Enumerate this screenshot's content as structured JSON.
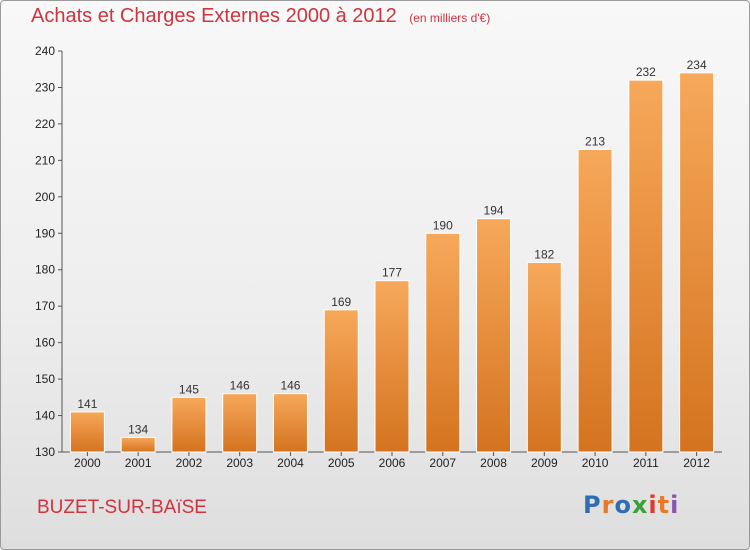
{
  "title": "Achats et Charges Externes 2000 à 2012",
  "subtitle": "(en milliers d'€)",
  "location": "BUZET-SUR-BAïSE",
  "logo_text": "Proxiti",
  "colors": {
    "title": "#d0343f",
    "bar_light": "#f7a85a",
    "bar_dark": "#d4731f",
    "logo": [
      "#2f6db5",
      "#e8792a",
      "#2f6db5",
      "#3aa13a",
      "#e0392f",
      "#e8792a",
      "#8a55b0"
    ]
  },
  "chart_data": {
    "type": "bar",
    "title": "Achats et Charges Externes 2000 à 2012",
    "subtitle": "(en milliers d'€)",
    "categories": [
      "2000",
      "2001",
      "2002",
      "2003",
      "2004",
      "2005",
      "2006",
      "2007",
      "2008",
      "2009",
      "2010",
      "2011",
      "2012"
    ],
    "values": [
      141,
      134,
      145,
      146,
      146,
      169,
      177,
      190,
      194,
      182,
      213,
      232,
      234
    ],
    "ylim": [
      130,
      240
    ],
    "yticks": [
      130,
      140,
      150,
      160,
      170,
      180,
      190,
      200,
      210,
      220,
      230,
      240
    ],
    "grid": false,
    "data_labels": true
  }
}
